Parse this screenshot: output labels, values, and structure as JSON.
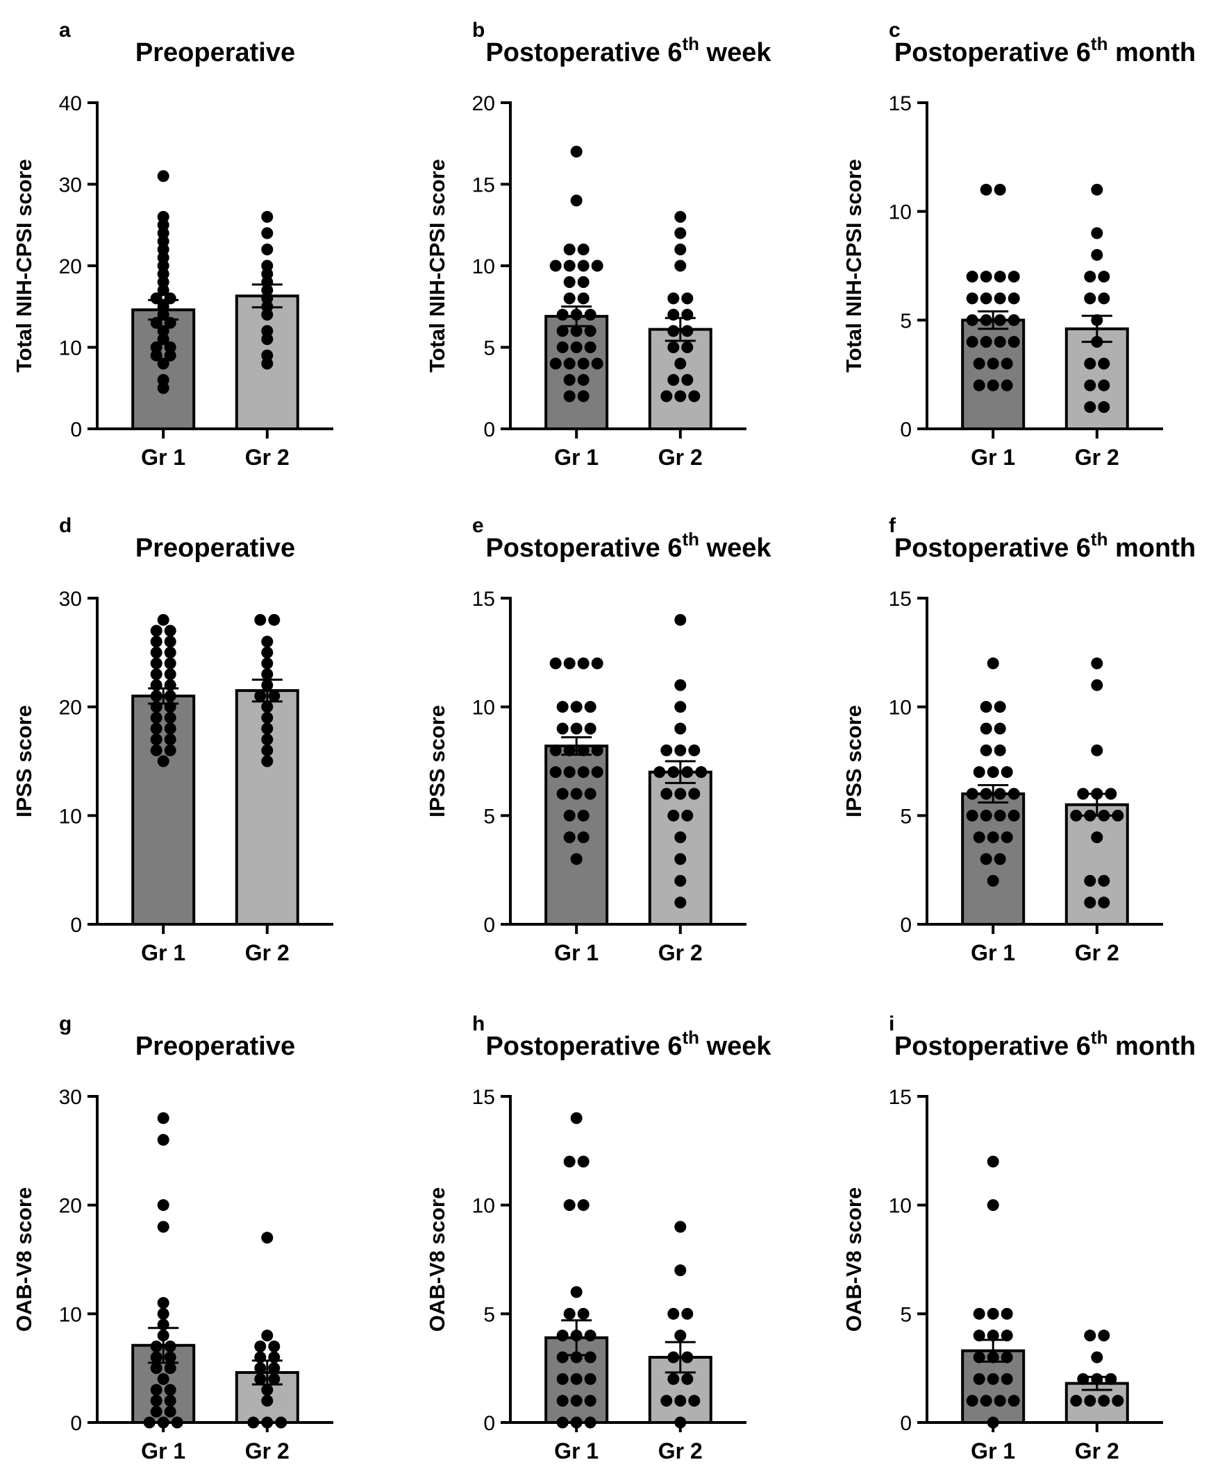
{
  "chart_data": [
    {
      "type": "bar",
      "letter": "a",
      "title": "Preoperative",
      "title_sup": "",
      "title_suffix": "",
      "ylabel": "Total NIH-CPSI score",
      "ylim": [
        0,
        40
      ],
      "yticks": [
        0,
        10,
        20,
        30,
        40
      ],
      "categories": [
        "Gr 1",
        "Gr 2"
      ],
      "values": [
        14.6,
        16.3
      ],
      "errors": [
        1.2,
        1.4
      ],
      "points": [
        [
          5,
          6,
          8,
          9,
          9,
          10,
          10,
          11,
          12,
          13,
          13,
          14,
          15,
          16,
          16,
          17,
          18,
          19,
          20,
          21,
          22,
          23,
          24,
          25,
          26,
          31
        ],
        [
          8,
          9,
          11,
          12,
          14,
          15,
          16,
          17,
          18,
          19,
          20,
          22,
          24,
          26
        ]
      ]
    },
    {
      "type": "bar",
      "letter": "b",
      "title": "Postoperative 6",
      "title_sup": "th",
      "title_suffix": " week",
      "ylabel": "Total NIH-CPSI score",
      "ylim": [
        0,
        20
      ],
      "yticks": [
        0,
        5,
        10,
        15,
        20
      ],
      "categories": [
        "Gr 1",
        "Gr 2"
      ],
      "values": [
        6.9,
        6.1
      ],
      "errors": [
        0.6,
        0.7
      ],
      "points": [
        [
          2,
          2,
          3,
          3,
          4,
          4,
          4,
          4,
          5,
          5,
          5,
          6,
          6,
          6,
          7,
          7,
          7,
          8,
          8,
          9,
          9,
          10,
          10,
          10,
          10,
          11,
          11,
          14,
          17
        ],
        [
          2,
          2,
          2,
          3,
          3,
          4,
          5,
          5,
          6,
          6,
          7,
          7,
          8,
          8,
          10,
          11,
          12,
          13
        ]
      ]
    },
    {
      "type": "bar",
      "letter": "c",
      "title": "Postoperative 6",
      "title_sup": "th",
      "title_suffix": " month",
      "ylabel": "Total NIH-CPSI score",
      "ylim": [
        0,
        15
      ],
      "yticks": [
        0,
        5,
        10,
        15
      ],
      "categories": [
        "Gr 1",
        "Gr 2"
      ],
      "values": [
        5.0,
        4.6
      ],
      "errors": [
        0.4,
        0.6
      ],
      "points": [
        [
          2,
          2,
          2,
          3,
          3,
          3,
          4,
          4,
          4,
          4,
          5,
          5,
          5,
          5,
          6,
          6,
          6,
          6,
          7,
          7,
          7,
          7,
          11,
          11
        ],
        [
          1,
          1,
          2,
          2,
          3,
          3,
          4,
          5,
          6,
          6,
          7,
          7,
          8,
          9,
          11
        ]
      ]
    },
    {
      "type": "bar",
      "letter": "d",
      "title": "Preoperative",
      "title_sup": "",
      "title_suffix": "",
      "ylabel": "IPSS score",
      "ylim": [
        0,
        30
      ],
      "yticks": [
        0,
        10,
        20,
        30
      ],
      "categories": [
        "Gr 1",
        "Gr 2"
      ],
      "values": [
        21.0,
        21.5
      ],
      "errors": [
        0.7,
        1.0
      ],
      "points": [
        [
          15,
          16,
          16,
          17,
          17,
          18,
          18,
          19,
          19,
          20,
          20,
          21,
          21,
          22,
          22,
          23,
          23,
          24,
          24,
          25,
          25,
          26,
          26,
          27,
          27,
          28
        ],
        [
          15,
          16,
          17,
          18,
          19,
          20,
          21,
          21,
          22,
          23,
          24,
          25,
          26,
          28,
          28
        ]
      ]
    },
    {
      "type": "bar",
      "letter": "e",
      "title": "Postoperative 6",
      "title_sup": "th",
      "title_suffix": " week",
      "ylabel": "IPSS score",
      "ylim": [
        0,
        15
      ],
      "yticks": [
        0,
        5,
        10,
        15
      ],
      "categories": [
        "Gr 1",
        "Gr 2"
      ],
      "values": [
        8.2,
        7.0
      ],
      "errors": [
        0.4,
        0.5
      ],
      "points": [
        [
          3,
          4,
          4,
          5,
          5,
          6,
          6,
          6,
          7,
          7,
          7,
          7,
          8,
          8,
          8,
          8,
          9,
          9,
          9,
          10,
          10,
          10,
          12,
          12,
          12,
          12
        ],
        [
          1,
          2,
          3,
          4,
          5,
          5,
          6,
          6,
          6,
          7,
          7,
          7,
          7,
          8,
          8,
          8,
          9,
          10,
          11,
          14
        ]
      ]
    },
    {
      "type": "bar",
      "letter": "f",
      "title": "Postoperative 6",
      "title_sup": "th",
      "title_suffix": " month",
      "ylabel": "IPSS score",
      "ylim": [
        0,
        15
      ],
      "yticks": [
        0,
        5,
        10,
        15
      ],
      "categories": [
        "Gr 1",
        "Gr 2"
      ],
      "values": [
        6.0,
        5.5
      ],
      "errors": [
        0.4,
        0.5
      ],
      "points": [
        [
          2,
          3,
          3,
          4,
          4,
          4,
          5,
          5,
          5,
          5,
          6,
          6,
          6,
          6,
          7,
          7,
          7,
          8,
          8,
          9,
          9,
          10,
          10,
          12
        ],
        [
          1,
          1,
          2,
          2,
          4,
          5,
          5,
          5,
          5,
          6,
          6,
          6,
          8,
          11,
          12
        ]
      ]
    },
    {
      "type": "bar",
      "letter": "g",
      "title": "Preoperative",
      "title_sup": "",
      "title_suffix": "",
      "ylabel": "OAB-V8 score",
      "ylim": [
        0,
        30
      ],
      "yticks": [
        0,
        10,
        20,
        30
      ],
      "categories": [
        "Gr 1",
        "Gr 2"
      ],
      "values": [
        7.1,
        4.6
      ],
      "errors": [
        1.6,
        1.1
      ],
      "points": [
        [
          0,
          0,
          0,
          1,
          1,
          2,
          2,
          3,
          3,
          4,
          5,
          5,
          6,
          6,
          7,
          7,
          8,
          9,
          10,
          11,
          18,
          20,
          26,
          28
        ],
        [
          0,
          0,
          0,
          2,
          3,
          4,
          4,
          5,
          5,
          6,
          6,
          7,
          7,
          8,
          17
        ]
      ]
    },
    {
      "type": "bar",
      "letter": "h",
      "title": "Postoperative 6",
      "title_sup": "th",
      "title_suffix": " week",
      "ylabel": "OAB-V8 score",
      "ylim": [
        0,
        15
      ],
      "yticks": [
        0,
        5,
        10,
        15
      ],
      "categories": [
        "Gr 1",
        "Gr 2"
      ],
      "values": [
        3.9,
        3.0
      ],
      "errors": [
        0.8,
        0.7
      ],
      "points": [
        [
          0,
          0,
          0,
          1,
          1,
          1,
          2,
          2,
          2,
          3,
          3,
          3,
          4,
          4,
          4,
          5,
          5,
          6,
          10,
          10,
          12,
          12,
          14
        ],
        [
          0,
          1,
          1,
          1,
          2,
          2,
          3,
          3,
          4,
          5,
          5,
          7,
          9
        ]
      ]
    },
    {
      "type": "bar",
      "letter": "i",
      "title": "Postoperative 6",
      "title_sup": "th",
      "title_suffix": " month",
      "ylabel": "OAB-V8 score",
      "ylim": [
        0,
        15
      ],
      "yticks": [
        0,
        5,
        10,
        15
      ],
      "categories": [
        "Gr 1",
        "Gr 2"
      ],
      "values": [
        3.3,
        1.8
      ],
      "errors": [
        0.5,
        0.3
      ],
      "points": [
        [
          0,
          1,
          1,
          1,
          1,
          2,
          2,
          2,
          3,
          3,
          3,
          4,
          4,
          4,
          5,
          5,
          5,
          10,
          12
        ],
        [
          1,
          1,
          1,
          1,
          2,
          2,
          2,
          3,
          4,
          4
        ]
      ]
    }
  ]
}
